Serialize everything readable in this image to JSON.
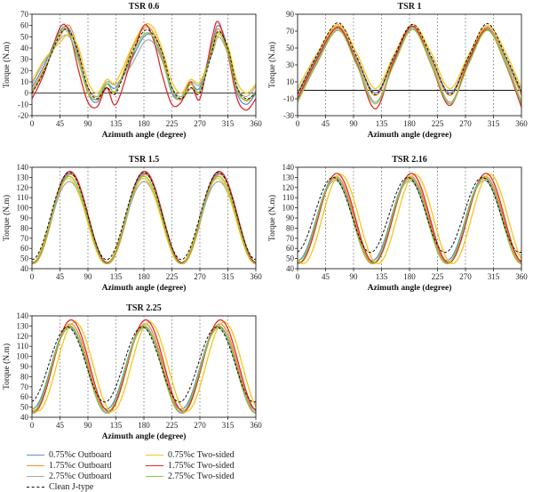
{
  "colors": {
    "c075_outboard": "#5b8fd1",
    "c175_outboard": "#f0902a",
    "c275_outboard": "#aaaaaa",
    "c075_twosided": "#f5c518",
    "c175_twosided": "#e0282e",
    "c275_twosided": "#8dc63f",
    "clean": "#111111"
  },
  "legend": {
    "items": [
      {
        "label": "0.75%c Outboard",
        "color_key": "c075_outboard",
        "dash": false
      },
      {
        "label": "1.75%c Outboard",
        "color_key": "c175_outboard",
        "dash": false
      },
      {
        "label": "2.75%c Outboard",
        "color_key": "c275_outboard",
        "dash": false
      },
      {
        "label": "Clean J-type",
        "color_key": "clean",
        "dash": true
      },
      {
        "label": "0.75%c Two-sided",
        "color_key": "c075_twosided",
        "dash": false
      },
      {
        "label": "1.75%c Two-sided",
        "color_key": "c175_twosided",
        "dash": false
      },
      {
        "label": "2.75%c Two-sided",
        "color_key": "c275_twosided",
        "dash": false
      }
    ]
  },
  "chart_data": [
    {
      "type": "line",
      "title": "TSR 0.6",
      "xlabel": "Azimuth angle (degree)",
      "ylabel": "Torque (N.m)",
      "xlim": [
        0,
        360
      ],
      "ylim": [
        -20,
        70
      ],
      "xticks": [
        0,
        45,
        90,
        135,
        180,
        225,
        270,
        315,
        360
      ],
      "yticks": [
        -20,
        -10,
        0,
        10,
        20,
        30,
        40,
        50,
        60,
        70
      ],
      "vlines": [
        45,
        90,
        135,
        180,
        225,
        270,
        315
      ],
      "zero_line": true,
      "series": [
        {
          "name": "Clean J-type",
          "color_key": "clean",
          "dash": true,
          "x": [
            0,
            20,
            45,
            60,
            75,
            90,
            105,
            120,
            135,
            160,
            180,
            195,
            210,
            225,
            240,
            255,
            270,
            290,
            300,
            315,
            330,
            345,
            360
          ],
          "y": [
            0,
            20,
            52,
            55,
            35,
            5,
            -5,
            5,
            0,
            35,
            55,
            52,
            35,
            5,
            -5,
            5,
            0,
            38,
            55,
            40,
            5,
            -5,
            0
          ]
        },
        {
          "name": "0.75%c Outboard",
          "color_key": "c075_outboard",
          "x": [
            0,
            20,
            45,
            60,
            75,
            90,
            105,
            120,
            135,
            160,
            180,
            195,
            210,
            225,
            240,
            255,
            270,
            290,
            300,
            315,
            330,
            345,
            360
          ],
          "y": [
            5,
            25,
            55,
            57,
            32,
            0,
            -8,
            8,
            5,
            30,
            50,
            50,
            30,
            0,
            -5,
            8,
            5,
            45,
            60,
            40,
            0,
            -10,
            0
          ]
        },
        {
          "name": "1.75%c Outboard",
          "color_key": "c175_outboard",
          "x": [
            0,
            20,
            45,
            60,
            75,
            90,
            105,
            120,
            135,
            160,
            180,
            195,
            210,
            225,
            240,
            255,
            270,
            290,
            300,
            315,
            330,
            345,
            360
          ],
          "y": [
            2,
            22,
            50,
            60,
            36,
            2,
            -6,
            4,
            2,
            38,
            58,
            54,
            34,
            2,
            -6,
            4,
            2,
            42,
            57,
            38,
            4,
            -7,
            2
          ]
        },
        {
          "name": "2.75%c Outboard",
          "color_key": "c275_outboard",
          "x": [
            0,
            20,
            45,
            60,
            75,
            90,
            105,
            120,
            135,
            160,
            180,
            195,
            210,
            225,
            240,
            255,
            270,
            290,
            300,
            315,
            330,
            345,
            360
          ],
          "y": [
            8,
            28,
            48,
            50,
            30,
            5,
            -3,
            10,
            8,
            25,
            45,
            45,
            28,
            5,
            -3,
            10,
            8,
            35,
            50,
            35,
            5,
            -3,
            6
          ]
        },
        {
          "name": "0.75%c Two-sided",
          "color_key": "c075_twosided",
          "x": [
            0,
            20,
            45,
            60,
            75,
            90,
            105,
            120,
            135,
            160,
            180,
            195,
            210,
            225,
            240,
            255,
            270,
            290,
            300,
            315,
            330,
            345,
            360
          ],
          "y": [
            10,
            30,
            45,
            52,
            40,
            10,
            0,
            12,
            10,
            40,
            60,
            58,
            38,
            10,
            0,
            12,
            10,
            38,
            52,
            42,
            10,
            0,
            8
          ]
        },
        {
          "name": "1.75%c Two-sided",
          "color_key": "c175_twosided",
          "x": [
            0,
            20,
            45,
            60,
            75,
            90,
            105,
            120,
            135,
            160,
            180,
            195,
            210,
            225,
            240,
            255,
            270,
            290,
            300,
            315,
            330,
            345,
            360
          ],
          "y": [
            -5,
            18,
            58,
            54,
            20,
            -8,
            -12,
            5,
            -10,
            30,
            60,
            48,
            15,
            -10,
            -8,
            10,
            -5,
            50,
            63,
            35,
            -5,
            -15,
            -5
          ]
        },
        {
          "name": "2.75%c Two-sided",
          "color_key": "c275_twosided",
          "x": [
            0,
            20,
            45,
            60,
            75,
            90,
            105,
            120,
            135,
            160,
            180,
            195,
            210,
            225,
            240,
            255,
            270,
            290,
            300,
            315,
            330,
            345,
            360
          ],
          "y": [
            0,
            20,
            54,
            52,
            28,
            0,
            -5,
            8,
            2,
            33,
            52,
            50,
            28,
            2,
            -5,
            8,
            2,
            40,
            54,
            36,
            2,
            -6,
            1
          ]
        }
      ]
    },
    {
      "type": "line",
      "title": "TSR 1",
      "xlabel": "Azimuth angle (degree)",
      "ylabel": "Torque (N.m)",
      "xlim": [
        0,
        360
      ],
      "ylim": [
        -30,
        90
      ],
      "xticks": [
        0,
        45,
        90,
        135,
        180,
        225,
        270,
        315,
        360
      ],
      "yticks": [
        -30,
        -10,
        10,
        30,
        50,
        70,
        90
      ],
      "vlines": [
        45,
        90,
        135,
        180,
        225,
        270,
        315
      ],
      "zero_line": true,
      "series": [
        {
          "name": "Clean J-type",
          "color_key": "clean",
          "dash": true,
          "x": [
            0,
            30,
            65,
            95,
            125,
            155,
            185,
            215,
            245,
            275,
            305,
            335,
            360
          ],
          "y": [
            -5,
            40,
            80,
            40,
            -5,
            40,
            78,
            40,
            -5,
            40,
            79,
            40,
            -2
          ]
        },
        {
          "name": "0.75%c Outboard",
          "color_key": "c075_outboard",
          "x": [
            0,
            30,
            65,
            95,
            125,
            155,
            185,
            215,
            245,
            275,
            305,
            335,
            360
          ],
          "y": [
            -3,
            38,
            75,
            38,
            -3,
            38,
            75,
            38,
            -3,
            38,
            74,
            38,
            -3
          ]
        },
        {
          "name": "1.75%c Outboard",
          "color_key": "c175_outboard",
          "x": [
            0,
            30,
            65,
            95,
            125,
            155,
            185,
            215,
            245,
            275,
            305,
            335,
            360
          ],
          "y": [
            -6,
            36,
            76,
            36,
            -6,
            36,
            76,
            36,
            -6,
            36,
            75,
            36,
            -6
          ]
        },
        {
          "name": "2.75%c Outboard",
          "color_key": "c275_outboard",
          "x": [
            0,
            30,
            65,
            95,
            125,
            155,
            185,
            215,
            245,
            275,
            305,
            335,
            360
          ],
          "y": [
            -12,
            32,
            72,
            34,
            -14,
            33,
            73,
            33,
            -14,
            33,
            72,
            33,
            -14
          ]
        },
        {
          "name": "0.75%c Two-sided",
          "color_key": "c075_twosided",
          "x": [
            0,
            30,
            65,
            95,
            125,
            155,
            185,
            215,
            245,
            275,
            305,
            335,
            360
          ],
          "y": [
            2,
            42,
            78,
            44,
            2,
            42,
            78,
            44,
            2,
            42,
            77,
            44,
            2
          ]
        },
        {
          "name": "1.75%c Two-sided",
          "color_key": "c175_twosided",
          "x": [
            0,
            30,
            65,
            95,
            125,
            155,
            185,
            215,
            245,
            275,
            305,
            335,
            360
          ],
          "y": [
            -10,
            35,
            74,
            32,
            -22,
            35,
            76,
            30,
            -18,
            35,
            72,
            30,
            -20
          ]
        },
        {
          "name": "2.75%c Two-sided",
          "color_key": "c275_twosided",
          "x": [
            0,
            30,
            65,
            95,
            125,
            155,
            185,
            215,
            245,
            275,
            305,
            335,
            360
          ],
          "y": [
            -14,
            30,
            71,
            30,
            -16,
            31,
            72,
            31,
            -16,
            31,
            71,
            31,
            -16
          ]
        }
      ]
    },
    {
      "type": "line",
      "title": "TSR 1.5",
      "xlabel": "Azimuth angle (degree)",
      "ylabel": "Torque (N.m)",
      "xlim": [
        0,
        360
      ],
      "ylim": [
        40,
        140
      ],
      "xticks": [
        0,
        45,
        90,
        135,
        180,
        225,
        270,
        315,
        360
      ],
      "yticks": [
        40,
        50,
        60,
        70,
        80,
        90,
        100,
        110,
        120,
        130,
        140
      ],
      "vlines": [
        45,
        90,
        135,
        180,
        225,
        270,
        315
      ],
      "zero_line": false,
      "series": [
        {
          "name": "Clean J-type",
          "color_key": "clean",
          "dash": true,
          "mean": 92,
          "amp": 43,
          "phase": 0
        },
        {
          "name": "0.75%c Outboard",
          "color_key": "c075_outboard",
          "mean": 90,
          "amp": 44,
          "phase": 1
        },
        {
          "name": "1.75%c Outboard",
          "color_key": "c175_outboard",
          "mean": 89,
          "amp": 44,
          "phase": 2
        },
        {
          "name": "2.75%c Outboard",
          "color_key": "c275_outboard",
          "mean": 86,
          "amp": 40,
          "phase": 0
        },
        {
          "name": "0.75%c Two-sided",
          "color_key": "c075_twosided",
          "mean": 87,
          "amp": 42,
          "phase": -1
        },
        {
          "name": "1.75%c Two-sided",
          "color_key": "c175_twosided",
          "mean": 91,
          "amp": 45,
          "phase": 1
        },
        {
          "name": "2.75%c Two-sided",
          "color_key": "c275_twosided",
          "mean": 88,
          "amp": 43,
          "phase": 0
        }
      ]
    },
    {
      "type": "line",
      "title": "TSR 2.16",
      "xlabel": "Azimuth angle (degree)",
      "ylabel": "Torque (N.m)",
      "xlim": [
        0,
        360
      ],
      "ylim": [
        40,
        140
      ],
      "xticks": [
        0,
        45,
        90,
        135,
        180,
        225,
        270,
        315,
        360
      ],
      "yticks": [
        40,
        50,
        60,
        70,
        80,
        90,
        100,
        110,
        120,
        130,
        140
      ],
      "vlines": [
        45,
        90,
        135,
        180,
        225,
        270,
        315
      ],
      "zero_line": false,
      "series": [
        {
          "name": "Clean J-type",
          "color_key": "clean",
          "dash": true,
          "mean": 93,
          "amp": 37,
          "phase": -3
        },
        {
          "name": "0.75%c Outboard",
          "color_key": "c075_outboard",
          "mean": 89,
          "amp": 41,
          "phase": 0
        },
        {
          "name": "1.75%c Outboard",
          "color_key": "c175_outboard",
          "mean": 88,
          "amp": 43,
          "phase": 2
        },
        {
          "name": "2.75%c Outboard",
          "color_key": "c275_outboard",
          "mean": 86,
          "amp": 41,
          "phase": 0
        },
        {
          "name": "0.75%c Two-sided",
          "color_key": "c075_twosided",
          "mean": 89,
          "amp": 44,
          "phase": 9
        },
        {
          "name": "1.75%c Two-sided",
          "color_key": "c175_twosided",
          "mean": 90,
          "amp": 44,
          "phase": 3
        },
        {
          "name": "2.75%c Two-sided",
          "color_key": "c275_twosided",
          "mean": 87,
          "amp": 42,
          "phase": 0
        }
      ]
    },
    {
      "type": "line",
      "title": "TSR 2.25",
      "xlabel": "Azimuth angle (degree)",
      "ylabel": "Torque (N.m)",
      "xlim": [
        0,
        360
      ],
      "ylim": [
        40,
        140
      ],
      "xticks": [
        0,
        45,
        90,
        135,
        180,
        225,
        270,
        315,
        360
      ],
      "yticks": [
        40,
        50,
        60,
        70,
        80,
        90,
        100,
        110,
        120,
        130,
        140
      ],
      "vlines": [
        45,
        90,
        135,
        180,
        225,
        270,
        315
      ],
      "zero_line": false,
      "series": [
        {
          "name": "Clean J-type",
          "color_key": "clean",
          "dash": true,
          "mean": 92,
          "amp": 37,
          "phase": -3
        },
        {
          "name": "0.75%c Outboard",
          "color_key": "c075_outboard",
          "mean": 89,
          "amp": 41,
          "phase": 0
        },
        {
          "name": "1.75%c Outboard",
          "color_key": "c175_outboard",
          "mean": 88,
          "amp": 44,
          "phase": 2
        },
        {
          "name": "2.75%c Outboard",
          "color_key": "c275_outboard",
          "mean": 86,
          "amp": 42,
          "phase": 0
        },
        {
          "name": "0.75%c Two-sided",
          "color_key": "c075_twosided",
          "mean": 90,
          "amp": 44,
          "phase": 9
        },
        {
          "name": "1.75%c Two-sided",
          "color_key": "c175_twosided",
          "mean": 91,
          "amp": 45,
          "phase": 3
        },
        {
          "name": "2.75%c Two-sided",
          "color_key": "c275_twosided",
          "mean": 87,
          "amp": 42,
          "phase": 0
        }
      ]
    }
  ]
}
